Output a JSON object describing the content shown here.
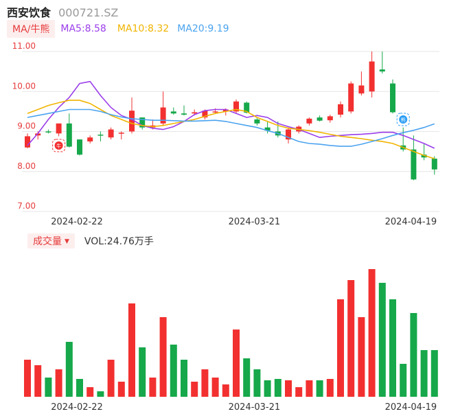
{
  "header": {
    "name": "西安饮食",
    "code": "000721.SZ"
  },
  "ma_legend": {
    "tag": "MA/牛熊",
    "ma5": "MA5:8.58",
    "ma10": "MA10:8.32",
    "ma20": "MA20:9.19"
  },
  "volume_legend": {
    "tag": "成交量",
    "value": "VOL:24.76万手"
  },
  "colors": {
    "up": "#f23030",
    "down": "#16a84a",
    "ma5": "#9a3dea",
    "ma10": "#f0b400",
    "ma20": "#4aa3ef",
    "grid": "#e6e6e6"
  },
  "chart_data": [
    {
      "type": "candlestick",
      "title": "",
      "yticks": [
        "11.00",
        "10.00",
        "9.00",
        "8.00",
        "7.00"
      ],
      "ylim": [
        7.0,
        11.0
      ],
      "xtick_labels": [
        {
          "index": 5,
          "label": "2024-02-22"
        },
        {
          "index": 22,
          "label": "2024-03-21"
        },
        {
          "index": 37,
          "label": "2024-04-19"
        }
      ],
      "markers": [
        {
          "index": 3,
          "label": "牛",
          "color": "#f23030"
        },
        {
          "index": 36,
          "label": "熊",
          "color": "#2a9df4"
        }
      ],
      "candles": [
        {
          "o": 8.6,
          "h": 8.95,
          "l": 8.58,
          "c": 8.88
        },
        {
          "o": 8.9,
          "h": 9.0,
          "l": 8.8,
          "c": 8.95
        },
        {
          "o": 9.0,
          "h": 9.05,
          "l": 8.95,
          "c": 8.98
        },
        {
          "o": 8.95,
          "h": 9.2,
          "l": 8.88,
          "c": 9.2
        },
        {
          "o": 9.2,
          "h": 9.45,
          "l": 8.6,
          "c": 8.62
        },
        {
          "o": 8.8,
          "h": 8.8,
          "l": 8.4,
          "c": 8.42
        },
        {
          "o": 8.75,
          "h": 8.9,
          "l": 8.7,
          "c": 8.85
        },
        {
          "o": 8.92,
          "h": 9.0,
          "l": 8.75,
          "c": 8.9
        },
        {
          "o": 8.85,
          "h": 9.1,
          "l": 8.8,
          "c": 9.05
        },
        {
          "o": 8.95,
          "h": 9.0,
          "l": 8.8,
          "c": 8.97
        },
        {
          "o": 9.0,
          "h": 9.85,
          "l": 8.95,
          "c": 9.52
        },
        {
          "o": 9.35,
          "h": 9.35,
          "l": 9.05,
          "c": 9.1
        },
        {
          "o": 9.1,
          "h": 9.3,
          "l": 9.05,
          "c": 9.15
        },
        {
          "o": 9.2,
          "h": 10.0,
          "l": 9.15,
          "c": 9.6
        },
        {
          "o": 9.5,
          "h": 9.6,
          "l": 9.42,
          "c": 9.45
        },
        {
          "o": 9.45,
          "h": 9.65,
          "l": 9.4,
          "c": 9.42
        },
        {
          "o": 9.45,
          "h": 9.55,
          "l": 9.4,
          "c": 9.48
        },
        {
          "o": 9.35,
          "h": 9.55,
          "l": 9.3,
          "c": 9.52
        },
        {
          "o": 9.48,
          "h": 9.58,
          "l": 9.45,
          "c": 9.5
        },
        {
          "o": 9.5,
          "h": 9.58,
          "l": 9.4,
          "c": 9.55
        },
        {
          "o": 9.5,
          "h": 9.8,
          "l": 9.45,
          "c": 9.75
        },
        {
          "o": 9.72,
          "h": 9.75,
          "l": 9.45,
          "c": 9.47
        },
        {
          "o": 9.3,
          "h": 9.35,
          "l": 9.15,
          "c": 9.2
        },
        {
          "o": 9.1,
          "h": 9.25,
          "l": 8.95,
          "c": 9.02
        },
        {
          "o": 9.0,
          "h": 9.25,
          "l": 8.85,
          "c": 8.9
        },
        {
          "o": 8.8,
          "h": 9.1,
          "l": 8.7,
          "c": 9.05
        },
        {
          "o": 9.0,
          "h": 9.15,
          "l": 8.95,
          "c": 9.12
        },
        {
          "o": 9.2,
          "h": 9.35,
          "l": 9.15,
          "c": 9.32
        },
        {
          "o": 9.35,
          "h": 9.4,
          "l": 9.25,
          "c": 9.27
        },
        {
          "o": 9.28,
          "h": 9.42,
          "l": 9.22,
          "c": 9.38
        },
        {
          "o": 9.42,
          "h": 9.75,
          "l": 9.35,
          "c": 9.68
        },
        {
          "o": 9.5,
          "h": 10.25,
          "l": 9.45,
          "c": 10.2
        },
        {
          "o": 9.95,
          "h": 10.5,
          "l": 9.9,
          "c": 10.15
        },
        {
          "o": 10.0,
          "h": 11.0,
          "l": 9.85,
          "c": 10.75
        },
        {
          "o": 10.55,
          "h": 11.0,
          "l": 10.45,
          "c": 10.5
        },
        {
          "o": 10.2,
          "h": 10.3,
          "l": 9.45,
          "c": 9.48
        },
        {
          "o": 8.65,
          "h": 9.1,
          "l": 8.5,
          "c": 8.55
        },
        {
          "o": 8.55,
          "h": 8.9,
          "l": 7.78,
          "c": 7.8
        },
        {
          "o": 8.42,
          "h": 8.68,
          "l": 8.28,
          "c": 8.35
        },
        {
          "o": 8.32,
          "h": 8.38,
          "l": 7.92,
          "c": 8.05
        }
      ],
      "ma5": [
        8.65,
        8.95,
        9.3,
        9.6,
        9.85,
        10.2,
        10.25,
        9.9,
        9.6,
        9.4,
        9.3,
        9.15,
        9.08,
        9.05,
        9.12,
        9.25,
        9.42,
        9.52,
        9.55,
        9.55,
        9.45,
        9.35,
        9.4,
        9.35,
        9.2,
        9.12,
        9.05,
        8.95,
        8.85,
        8.88,
        8.9,
        8.92,
        8.93,
        8.95,
        8.98,
        8.98,
        8.9,
        8.8,
        8.7,
        8.58
      ],
      "ma10": [
        9.45,
        9.55,
        9.65,
        9.72,
        9.78,
        9.78,
        9.7,
        9.55,
        9.4,
        9.3,
        9.2,
        9.15,
        9.12,
        9.15,
        9.2,
        9.25,
        9.3,
        9.38,
        9.45,
        9.5,
        9.55,
        9.5,
        9.35,
        9.25,
        9.15,
        9.08,
        9.05,
        9.02,
        8.98,
        8.93,
        8.88,
        8.85,
        8.82,
        8.78,
        8.75,
        8.7,
        8.6,
        8.5,
        8.4,
        8.32
      ],
      "ma20": [
        9.35,
        9.4,
        9.45,
        9.5,
        9.55,
        9.55,
        9.55,
        9.5,
        9.42,
        9.36,
        9.32,
        9.3,
        9.28,
        9.28,
        9.27,
        9.26,
        9.26,
        9.27,
        9.28,
        9.25,
        9.2,
        9.15,
        9.1,
        9.02,
        8.95,
        8.85,
        8.75,
        8.7,
        8.68,
        8.65,
        8.63,
        8.63,
        8.68,
        8.75,
        8.82,
        8.9,
        8.97,
        9.03,
        9.1,
        9.19
      ]
    },
    {
      "type": "bar",
      "title": "",
      "series": [
        {
          "values": [
            27,
            23,
            14,
            20,
            40,
            13,
            7,
            4,
            27,
            11,
            68,
            36,
            14,
            58,
            38,
            27,
            11,
            20,
            14,
            9,
            49,
            28,
            20,
            12,
            13,
            12,
            7,
            12,
            12,
            13,
            71,
            85,
            58,
            93,
            83,
            71,
            24,
            61,
            34,
            34
          ]
        }
      ],
      "ylim": [
        0,
        100
      ],
      "xtick_labels": [
        {
          "index": 5,
          "label": "2024-02-22"
        },
        {
          "index": 22,
          "label": "2024-03-21"
        },
        {
          "index": 37,
          "label": "2024-04-19"
        }
      ]
    }
  ]
}
